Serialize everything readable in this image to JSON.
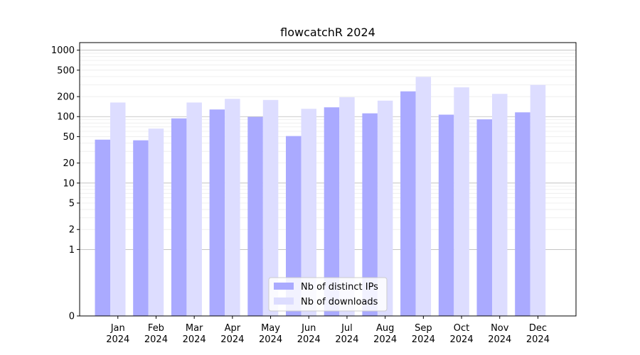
{
  "chart_data": {
    "type": "bar",
    "title": "flowcatchR 2024",
    "xlabel": "",
    "ylabel": "",
    "y_scale": "symlog",
    "ylim": [
      0,
      1300
    ],
    "y_ticks": [
      0,
      1,
      2,
      5,
      10,
      20,
      50,
      100,
      200,
      500,
      1000
    ],
    "grid": true,
    "legend_position": "lower-center",
    "categories": [
      {
        "month": "Jan",
        "year": "2024"
      },
      {
        "month": "Feb",
        "year": "2024"
      },
      {
        "month": "Mar",
        "year": "2024"
      },
      {
        "month": "Apr",
        "year": "2024"
      },
      {
        "month": "May",
        "year": "2024"
      },
      {
        "month": "Jun",
        "year": "2024"
      },
      {
        "month": "Jul",
        "year": "2024"
      },
      {
        "month": "Aug",
        "year": "2024"
      },
      {
        "month": "Sep",
        "year": "2024"
      },
      {
        "month": "Oct",
        "year": "2024"
      },
      {
        "month": "Nov",
        "year": "2024"
      },
      {
        "month": "Dec",
        "year": "2024"
      }
    ],
    "series": [
      {
        "name": "Nb of distinct IPs",
        "color": "#aaaaff",
        "values": [
          45,
          44,
          94,
          128,
          99,
          51,
          138,
          112,
          240,
          107,
          91,
          116
        ]
      },
      {
        "name": "Nb of downloads",
        "color": "#ddddff",
        "values": [
          163,
          66,
          163,
          185,
          178,
          131,
          196,
          174,
          396,
          276,
          220,
          300
        ]
      }
    ]
  }
}
